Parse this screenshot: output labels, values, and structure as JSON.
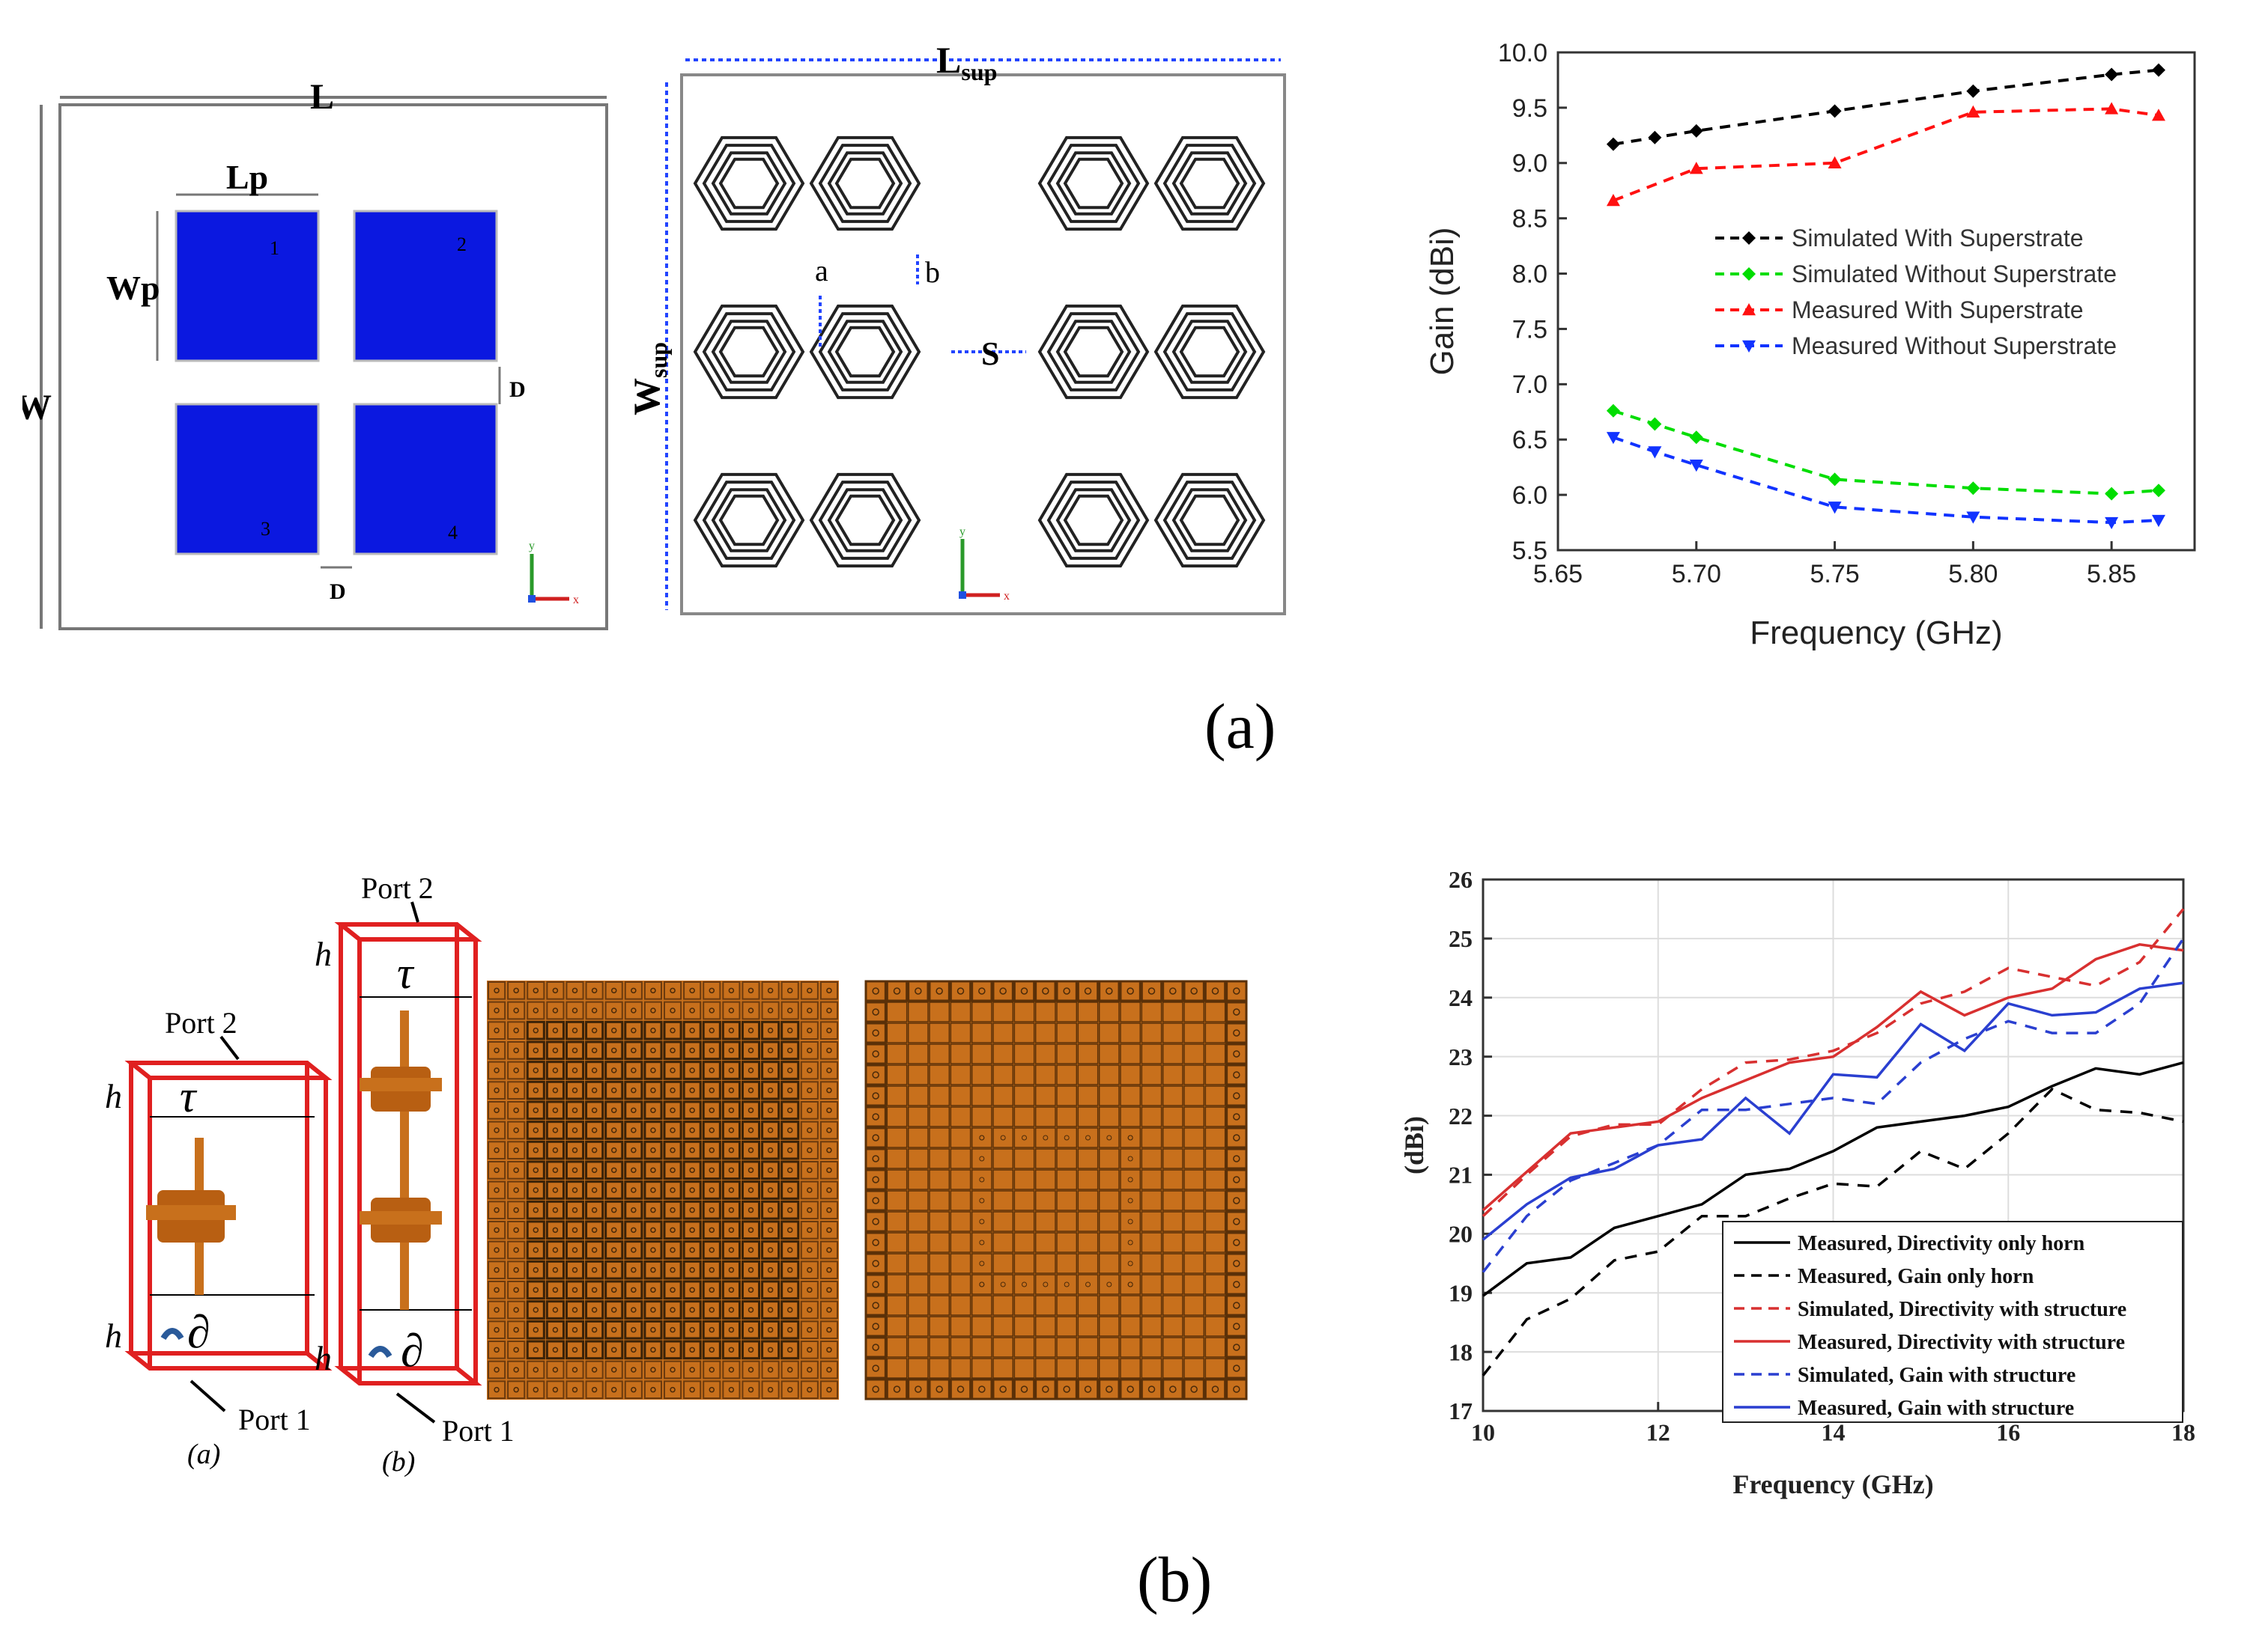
{
  "panel_a": {
    "caption": "(a)",
    "antenna": {
      "labels": {
        "L": "L",
        "W": "W",
        "Lp": "Lp",
        "Wp": "Wp",
        "D": "D"
      },
      "patch_numbers": [
        "1",
        "2",
        "3",
        "4"
      ],
      "patch_color": "#0b18e0"
    },
    "superstrate": {
      "labels": {
        "Lsup": "L",
        "Lsup_sub": "sup",
        "Wsup": "W",
        "Wsup_sub": "sup",
        "a": "a",
        "b": "b",
        "S": "S"
      }
    },
    "axes_labels": {
      "x": "x",
      "y": "y"
    }
  },
  "panel_b": {
    "caption": "(b)",
    "unit_cells": [
      {
        "label": "(a)",
        "port_top": "Port 2",
        "port_bottom": "Port 1",
        "h": "h",
        "tau": "τ",
        "partial": "∂"
      },
      {
        "label": "(b)",
        "port_top": "Port 2",
        "port_bottom": "Port 1",
        "h": "h",
        "tau": "τ",
        "partial": "∂"
      }
    ],
    "copper_color": "#c8701c"
  },
  "chart_data": [
    {
      "type": "line",
      "title": "",
      "xlabel": "Frequency (GHz)",
      "ylabel": "Gain (dBi)",
      "xlim": [
        5.65,
        5.88
      ],
      "ylim": [
        5.5,
        10.0
      ],
      "xticks": [
        5.65,
        5.7,
        5.75,
        5.8,
        5.85
      ],
      "xtick_labels": [
        "5.65",
        "5.70",
        "5.75",
        "5.80",
        "5.85"
      ],
      "yticks": [
        5.5,
        6.0,
        6.5,
        7.0,
        7.5,
        8.0,
        8.5,
        9.0,
        9.5,
        10.0
      ],
      "ytick_labels": [
        "5.5",
        "6.0",
        "6.5",
        "7.0",
        "7.5",
        "8.0",
        "8.5",
        "9.0",
        "9.5",
        "10.0"
      ],
      "legend_position": "center-right",
      "series": [
        {
          "name": "Simulated With Superstrate",
          "color": "#000000",
          "marker": "diamond",
          "x": [
            5.67,
            5.685,
            5.7,
            5.75,
            5.8,
            5.85,
            5.867
          ],
          "y": [
            9.17,
            9.23,
            9.29,
            9.47,
            9.65,
            9.8,
            9.84
          ]
        },
        {
          "name": "Simulated Without Superstrate",
          "color": "#00dd00",
          "marker": "diamond",
          "x": [
            5.67,
            5.685,
            5.7,
            5.75,
            5.8,
            5.85,
            5.867
          ],
          "y": [
            6.76,
            6.64,
            6.52,
            6.14,
            6.06,
            6.01,
            6.04
          ]
        },
        {
          "name": "Measured With Superstrate",
          "color": "#ff1111",
          "marker": "triangle-up",
          "x": [
            5.67,
            5.7,
            5.75,
            5.8,
            5.85,
            5.867
          ],
          "y": [
            8.66,
            8.95,
            9.0,
            9.46,
            9.49,
            9.43
          ]
        },
        {
          "name": "Measured Without Superstrate",
          "color": "#1133ff",
          "marker": "triangle-down",
          "x": [
            5.67,
            5.685,
            5.7,
            5.75,
            5.8,
            5.85,
            5.867
          ],
          "y": [
            6.52,
            6.39,
            6.27,
            5.89,
            5.8,
            5.75,
            5.77
          ]
        }
      ]
    },
    {
      "type": "line",
      "title": "",
      "xlabel": "Frequency (GHz)",
      "ylabel": "(dBi)",
      "xlim": [
        10,
        18
      ],
      "ylim": [
        17,
        26
      ],
      "xticks": [
        10,
        12,
        14,
        16,
        18
      ],
      "xtick_labels": [
        "10",
        "12",
        "14",
        "16",
        "18"
      ],
      "yticks": [
        17,
        18,
        19,
        20,
        21,
        22,
        23,
        24,
        25,
        26
      ],
      "ytick_labels": [
        "17",
        "18",
        "19",
        "20",
        "21",
        "22",
        "23",
        "24",
        "25",
        "26"
      ],
      "grid": true,
      "legend_position": "bottom-right",
      "series": [
        {
          "name": "Measured, Directivity only horn",
          "color": "#000000",
          "dash": false,
          "x": [
            10,
            10.5,
            11,
            11.5,
            12,
            12.5,
            13,
            13.5,
            14,
            14.5,
            15,
            15.5,
            16,
            16.5,
            17,
            17.5,
            18
          ],
          "y": [
            18.95,
            19.5,
            19.6,
            20.1,
            20.3,
            20.5,
            21.0,
            21.1,
            21.4,
            21.8,
            21.9,
            22.0,
            22.15,
            22.5,
            22.8,
            22.7,
            22.9
          ]
        },
        {
          "name": "Measured, Gain only horn",
          "color": "#000000",
          "dash": true,
          "x": [
            10,
            10.5,
            11,
            11.5,
            12,
            12.5,
            13,
            13.5,
            14,
            14.5,
            15,
            15.5,
            16,
            16.5,
            17,
            17.5,
            18
          ],
          "y": [
            17.6,
            18.55,
            18.9,
            19.55,
            19.7,
            20.3,
            20.3,
            20.6,
            20.85,
            20.8,
            21.4,
            21.1,
            21.7,
            22.45,
            22.1,
            22.05,
            21.9
          ]
        },
        {
          "name": "Simulated, Directivity with structure",
          "color": "#d83030",
          "dash": true,
          "x": [
            10,
            10.5,
            11,
            11.5,
            12,
            12.5,
            13,
            13.5,
            14,
            14.5,
            15,
            15.5,
            16,
            16.5,
            17,
            17.5,
            18
          ],
          "y": [
            20.3,
            21.0,
            21.65,
            21.85,
            21.85,
            22.45,
            22.9,
            22.95,
            23.1,
            23.4,
            23.9,
            24.1,
            24.5,
            24.35,
            24.2,
            24.6,
            25.5
          ]
        },
        {
          "name": "Measured, Directivity with structure",
          "color": "#d83030",
          "dash": false,
          "x": [
            10,
            10.5,
            11,
            11.5,
            12,
            12.5,
            13,
            13.5,
            14,
            14.5,
            15,
            15.5,
            16,
            16.5,
            17,
            17.5,
            18
          ],
          "y": [
            20.4,
            21.05,
            21.7,
            21.8,
            21.9,
            22.3,
            22.6,
            22.9,
            23.0,
            23.5,
            24.1,
            23.7,
            24.0,
            24.15,
            24.65,
            24.9,
            24.8
          ]
        },
        {
          "name": "Simulated, Gain with structure",
          "color": "#2a3fd0",
          "dash": true,
          "x": [
            10,
            10.5,
            11,
            11.5,
            12,
            12.5,
            13,
            13.5,
            14,
            14.5,
            15,
            15.5,
            16,
            16.5,
            17,
            17.5,
            18
          ],
          "y": [
            19.35,
            20.3,
            20.9,
            21.2,
            21.5,
            22.1,
            22.1,
            22.2,
            22.3,
            22.2,
            22.9,
            23.3,
            23.6,
            23.4,
            23.4,
            23.9,
            25.0
          ]
        },
        {
          "name": "Measured, Gain with structure",
          "color": "#2a3fd0",
          "dash": false,
          "x": [
            10,
            10.5,
            11,
            11.5,
            12,
            12.5,
            13,
            13.5,
            14,
            14.5,
            15,
            15.5,
            16,
            16.5,
            17,
            17.5,
            18
          ],
          "y": [
            19.9,
            20.5,
            20.95,
            21.1,
            21.5,
            21.6,
            22.3,
            21.7,
            22.7,
            22.65,
            23.55,
            23.1,
            23.9,
            23.7,
            23.75,
            24.15,
            24.25
          ]
        }
      ]
    }
  ]
}
